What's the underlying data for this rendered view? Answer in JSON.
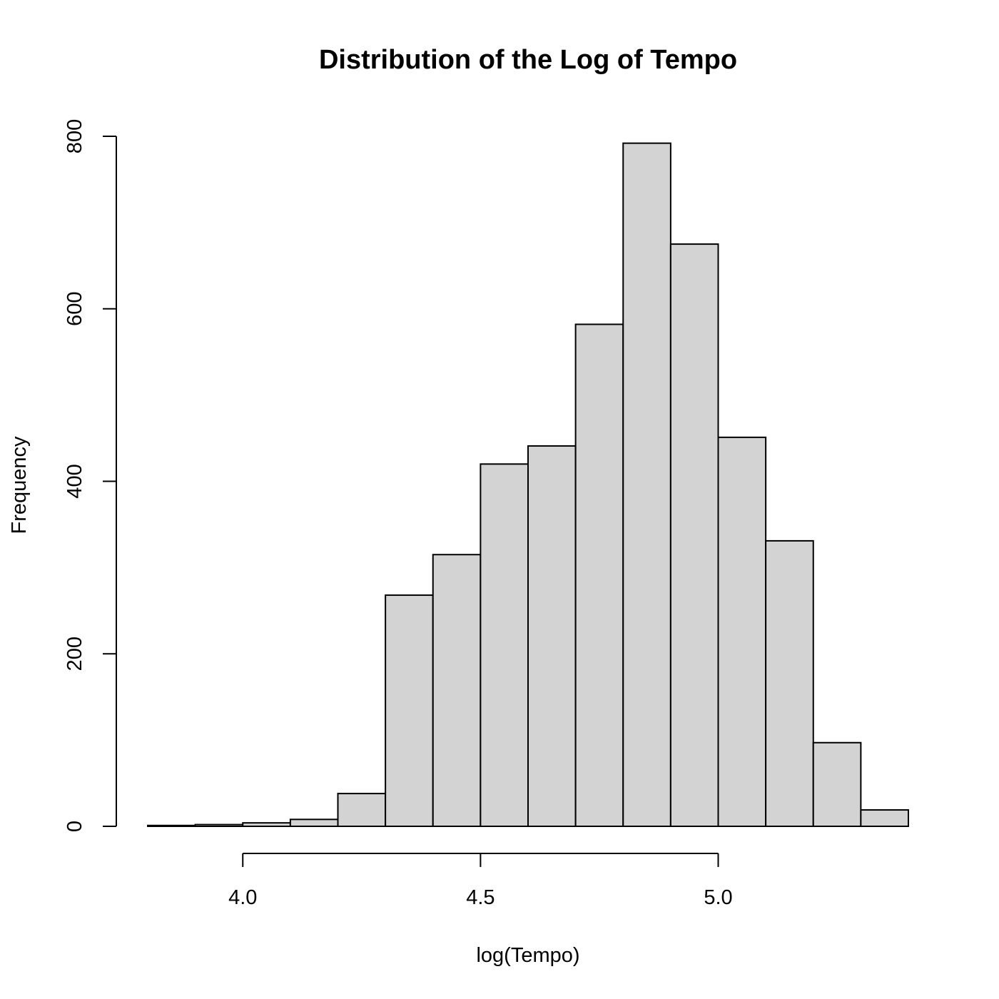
{
  "chart_data": {
    "type": "bar",
    "title": "Distribution of the Log of Tempo",
    "xlabel": "log(Tempo)",
    "ylabel": "Frequency",
    "bin_edges": [
      3.8,
      3.9,
      4.0,
      4.1,
      4.2,
      4.3,
      4.4,
      4.5,
      4.6,
      4.7,
      4.8,
      4.9,
      5.0,
      5.1,
      5.2,
      5.3,
      5.4
    ],
    "values": [
      1,
      2,
      4,
      8,
      38,
      268,
      315,
      420,
      441,
      582,
      792,
      675,
      451,
      331,
      97,
      19
    ],
    "xlim": [
      3.8,
      5.4
    ],
    "ylim": [
      0,
      800
    ],
    "xticks": [
      "4.0",
      "4.5",
      "5.0"
    ],
    "yticks": [
      "0",
      "200",
      "400",
      "600",
      "800"
    ],
    "grid": false,
    "bar_color": "#d3d3d3",
    "edge_color": "#000000"
  }
}
